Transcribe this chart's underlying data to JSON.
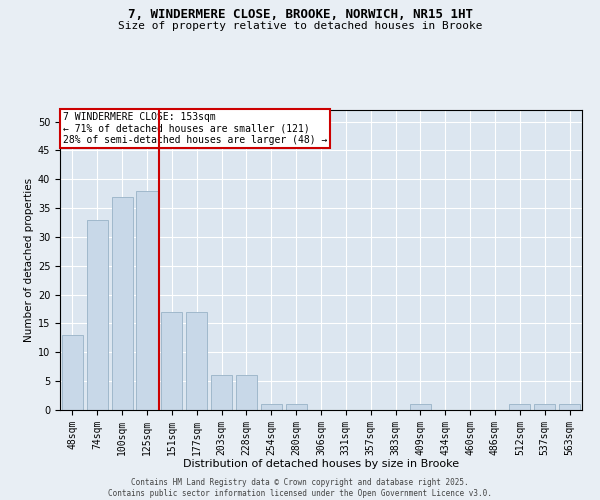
{
  "title_line1": "7, WINDERMERE CLOSE, BROOKE, NORWICH, NR15 1HT",
  "title_line2": "Size of property relative to detached houses in Brooke",
  "xlabel": "Distribution of detached houses by size in Brooke",
  "ylabel": "Number of detached properties",
  "categories": [
    "48sqm",
    "74sqm",
    "100sqm",
    "125sqm",
    "151sqm",
    "177sqm",
    "203sqm",
    "228sqm",
    "254sqm",
    "280sqm",
    "306sqm",
    "331sqm",
    "357sqm",
    "383sqm",
    "409sqm",
    "434sqm",
    "460sqm",
    "486sqm",
    "512sqm",
    "537sqm",
    "563sqm"
  ],
  "values": [
    13,
    33,
    37,
    38,
    17,
    17,
    6,
    6,
    1,
    1,
    0,
    0,
    0,
    0,
    1,
    0,
    0,
    0,
    1,
    1,
    1
  ],
  "bar_color": "#c8d8e8",
  "bar_edgecolor": "#a0b8cc",
  "vline_x_index": 4,
  "vline_color": "#cc0000",
  "annotation_text": "7 WINDERMERE CLOSE: 153sqm\n← 71% of detached houses are smaller (121)\n28% of semi-detached houses are larger (48) →",
  "annotation_box_edgecolor": "#cc0000",
  "annotation_fontsize": 7,
  "ylim": [
    0,
    52
  ],
  "yticks": [
    0,
    5,
    10,
    15,
    20,
    25,
    30,
    35,
    40,
    45,
    50
  ],
  "bg_color": "#e8eef4",
  "plot_bg_color": "#dce6f0",
  "footer_text": "Contains HM Land Registry data © Crown copyright and database right 2025.\nContains public sector information licensed under the Open Government Licence v3.0.",
  "title_fontsize": 9,
  "subtitle_fontsize": 8,
  "xlabel_fontsize": 8,
  "ylabel_fontsize": 7.5,
  "tick_fontsize": 7,
  "footer_fontsize": 5.5
}
